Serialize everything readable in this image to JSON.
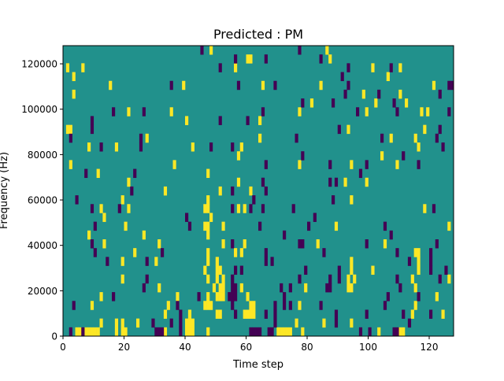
{
  "chart_data": {
    "type": "heatmap",
    "title": "Predicted : PM",
    "xlabel": "Time step",
    "ylabel": "Frequency (Hz)",
    "xlim": [
      0,
      128
    ],
    "ylim": [
      0,
      128000
    ],
    "n_time_steps": 128,
    "n_freq_bins": 33,
    "xticks": [
      "0",
      "20",
      "40",
      "60",
      "80",
      "100",
      "120"
    ],
    "xtick_values": [
      0,
      20,
      40,
      60,
      80,
      100,
      120
    ],
    "yticks": [
      "0",
      "20000",
      "40000",
      "60000",
      "80000",
      "100000",
      "120000"
    ],
    "ytick_values": [
      0,
      20000,
      40000,
      60000,
      80000,
      100000,
      120000
    ],
    "colormap": "viridis",
    "levels": {
      "low": -1,
      "background": 0,
      "high": 1
    },
    "colors": {
      "low": "#440154",
      "background": "#21918c",
      "high": "#fde725"
    },
    "grid": false,
    "high_cells_by_bin": {
      "32": [
        48,
        86
      ],
      "31": [
        60,
        61,
        87
      ],
      "30": [
        1,
        6,
        56,
        101,
        110
      ],
      "29": [
        3,
        106
      ],
      "28": [
        15,
        39,
        65,
        84,
        121
      ],
      "27": [
        3,
        98,
        110
      ],
      "26": [
        81,
        102,
        112
      ],
      "25": [
        21,
        35,
        77,
        99,
        117,
        119
      ],
      "24": [
        40,
        64
      ],
      "23": [
        1,
        2,
        93,
        118
      ],
      "22": [
        27,
        64,
        107,
        115
      ],
      "21": [
        8,
        17,
        42,
        58,
        116
      ],
      "20": [
        57,
        104
      ],
      "19": [
        2,
        36,
        77,
        94,
        109
      ],
      "18": [
        11,
        47
      ],
      "17": [
        21,
        57,
        92,
        99
      ],
      "16": [
        33,
        51,
        61
      ],
      "15": [
        19,
        47,
        94
      ],
      "14": [
        12,
        21,
        46,
        47,
        57,
        59,
        118
      ],
      "13": [
        13,
        48
      ],
      "12": [
        20,
        46,
        47,
        52,
        89,
        126
      ],
      "11": [
        8,
        26,
        47
      ],
      "10": [
        13,
        31,
        52,
        59,
        83,
        105
      ],
      "9": [
        23,
        47,
        56,
        58,
        115,
        116
      ],
      "8": [
        19,
        30,
        47,
        50,
        94,
        116
      ],
      "7": [
        46,
        50,
        51,
        94,
        101,
        116
      ],
      "6": [
        19,
        47,
        50,
        52,
        93,
        95,
        114,
        126
      ],
      "5": [
        31,
        49,
        51,
        52,
        58,
        79,
        93,
        94,
        115
      ],
      "4": [
        12,
        37,
        47,
        50,
        51,
        52,
        60,
        122
      ],
      "3": [
        9,
        34,
        46,
        47,
        48,
        61,
        62,
        77,
        115
      ],
      "2": [
        33,
        41,
        50,
        51,
        59,
        60,
        61,
        62,
        114,
        124
      ],
      "1": [
        12,
        17,
        19,
        24,
        40,
        41,
        42,
        76,
        85,
        94
      ],
      "0": [
        4,
        5,
        7,
        8,
        9,
        10,
        11,
        17,
        19,
        20,
        33,
        40,
        41,
        42,
        47,
        70,
        71,
        72,
        73,
        74,
        78,
        103,
        110,
        111
      ]
    },
    "low_cells_by_bin": {
      "32": [
        45,
        77
      ],
      "31": [
        56,
        66,
        84
      ],
      "30": [
        51,
        93,
        107
      ],
      "29": [
        91
      ],
      "28": [
        35,
        57,
        69,
        93,
        126,
        127
      ],
      "27": [
        92,
        103,
        123
      ],
      "26": [
        78,
        88,
        108
      ],
      "25": [
        16,
        26,
        65,
        96,
        109,
        126
      ],
      "24": [
        9,
        51,
        60
      ],
      "23": [
        9,
        90,
        123
      ],
      "22": [
        2,
        25,
        76,
        104,
        122
      ],
      "21": [
        12,
        25,
        48,
        55,
        124
      ],
      "20": [
        78,
        111
      ],
      "19": [
        66,
        87,
        99,
        116
      ],
      "18": [
        7,
        23,
        97
      ],
      "17": [
        65,
        87,
        89
      ],
      "16": [
        22,
        55,
        66
      ],
      "15": [
        4,
        62,
        88
      ],
      "14": [
        9,
        18,
        55,
        61,
        65,
        75,
        121
      ],
      "13": [
        40,
        82
      ],
      "12": [
        10,
        41,
        64,
        80,
        105
      ],
      "11": [
        72,
        107
      ],
      "10": [
        9,
        55,
        77,
        78,
        99,
        122
      ],
      "9": [
        10,
        32,
        66,
        85,
        109,
        120
      ],
      "8": [
        14,
        27,
        66,
        68,
        113,
        120
      ],
      "7": [
        56,
        58,
        79,
        90,
        120,
        125
      ],
      "6": [
        27,
        55,
        77,
        87,
        90,
        109,
        123
      ],
      "5": [
        26,
        55,
        56,
        71,
        74,
        86,
        87,
        110
      ],
      "4": [
        16,
        44,
        54,
        55,
        56,
        72,
        106,
        116
      ],
      "3": [
        3,
        37,
        55,
        69,
        72,
        74,
        84,
        105
      ],
      "2": [
        38,
        56,
        66,
        69,
        89,
        99,
        111,
        120
      ],
      "1": [
        29,
        35,
        38,
        69,
        89,
        113
      ],
      "0": [
        2,
        6,
        30,
        31,
        32,
        38,
        61,
        62,
        63,
        64,
        67,
        68,
        97,
        100,
        108,
        109
      ]
    }
  }
}
